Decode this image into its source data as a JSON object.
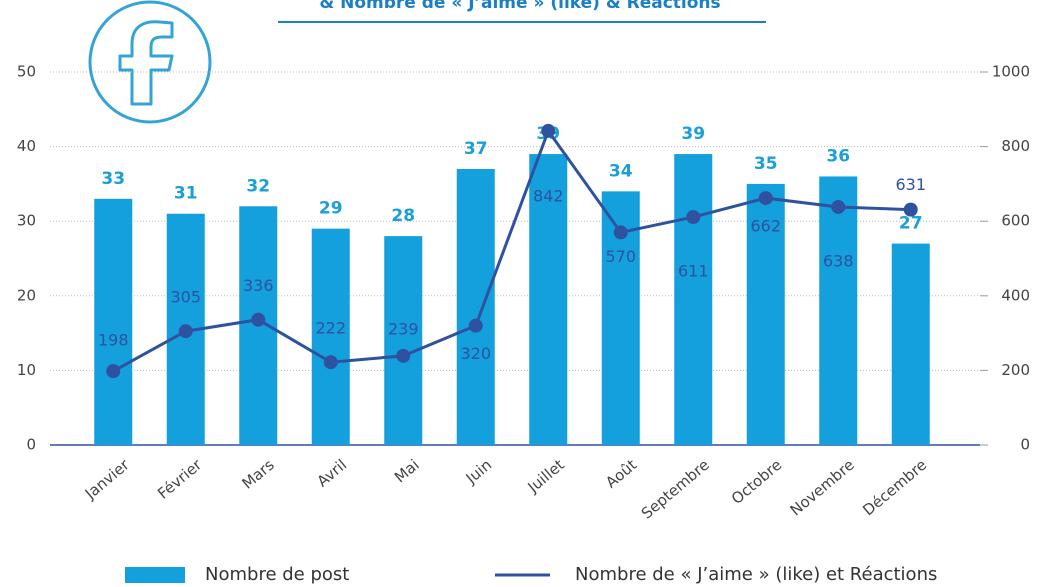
{
  "chart_data": {
    "type": "bar_line",
    "title": "& Nombre de « J’aime » (like) & Réactions",
    "categories": [
      "Janvier",
      "Février",
      "Mars",
      "Avril",
      "Mai",
      "Juin",
      "Juillet",
      "Août",
      "Septembre",
      "Octobre",
      "Novembre",
      "Décembre"
    ],
    "series": [
      {
        "name": "Nombre de post",
        "color": "#14a0dc",
        "type": "bar",
        "values": [
          33,
          31,
          32,
          29,
          28,
          37,
          39,
          34,
          39,
          35,
          36,
          27
        ]
      },
      {
        "name": "Nombre de « J’aime » (like) et Réactions",
        "color": "#2e52a0",
        "type": "line",
        "axis": "y2",
        "values": [
          198,
          305,
          336,
          222,
          239,
          320,
          842,
          570,
          611,
          662,
          638,
          631
        ]
      }
    ],
    "ylim": [
      0,
      50
    ],
    "yticks": [
      0,
      10,
      20,
      30,
      40,
      50
    ],
    "y2lim": [
      0,
      1000
    ],
    "y2ticks": [
      0,
      200,
      400,
      600,
      800,
      1000
    ],
    "grid": true,
    "legend": "bottom"
  }
}
